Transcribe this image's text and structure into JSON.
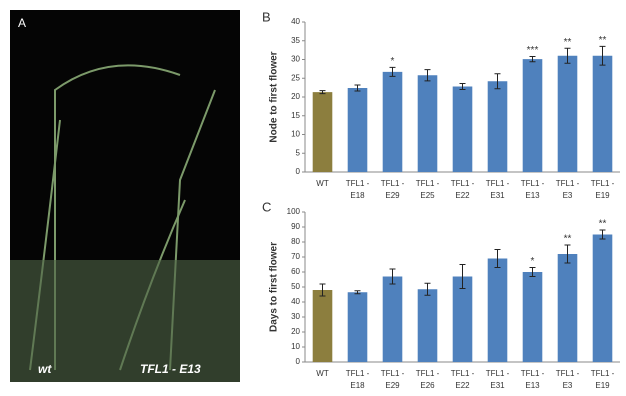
{
  "photo": {
    "label": "A",
    "captions": [
      "wt",
      "TFL1 - E13"
    ]
  },
  "chart_data": [
    {
      "type": "bar",
      "label": "B",
      "y_label": "Node to first flower",
      "categories": [
        "WT",
        "TFL1 - E18",
        "TFL1 - E29",
        "TFL1 - E25",
        "TFL1 - E22",
        "TFL1 - E31",
        "TFL1 - E13",
        "TFL1 - E3",
        "TFL1 - E19"
      ],
      "values": [
        21.3,
        22.4,
        26.7,
        25.8,
        22.8,
        24.2,
        30.1,
        31.0,
        31.0
      ],
      "errors": [
        0.4,
        0.8,
        1.2,
        1.5,
        0.8,
        2.0,
        0.7,
        2.0,
        2.5
      ],
      "significance": [
        null,
        null,
        "*",
        null,
        null,
        null,
        "***",
        "**",
        "**"
      ],
      "colors": [
        "#8c7e3e",
        "#4f81bd",
        "#4f81bd",
        "#4f81bd",
        "#4f81bd",
        "#4f81bd",
        "#4f81bd",
        "#4f81bd",
        "#4f81bd"
      ],
      "ylim": [
        0,
        40
      ],
      "yticks": [
        0,
        5,
        10,
        15,
        20,
        25,
        30,
        35,
        40
      ]
    },
    {
      "type": "bar",
      "label": "C",
      "y_label": "Days to first flower",
      "categories": [
        "WT",
        "TFL1 - E18",
        "TFL1 - E29",
        "TFL1 - E26",
        "TFL1 - E22",
        "TFL1 - E31",
        "TFL1 - E13",
        "TFL1 - E3",
        "TFL1 - E19"
      ],
      "values": [
        48,
        46.5,
        57,
        48.5,
        57,
        69,
        60,
        72,
        85
      ],
      "errors": [
        4,
        1,
        5,
        4,
        8,
        6,
        3,
        6,
        3
      ],
      "significance": [
        null,
        null,
        null,
        null,
        null,
        null,
        "*",
        "**",
        "**"
      ],
      "colors": [
        "#8c7e3e",
        "#4f81bd",
        "#4f81bd",
        "#4f81bd",
        "#4f81bd",
        "#4f81bd",
        "#4f81bd",
        "#4f81bd",
        "#4f81bd"
      ],
      "ylim": [
        0,
        100
      ],
      "yticks": [
        0,
        10,
        20,
        30,
        40,
        50,
        60,
        70,
        80,
        90,
        100
      ]
    }
  ]
}
